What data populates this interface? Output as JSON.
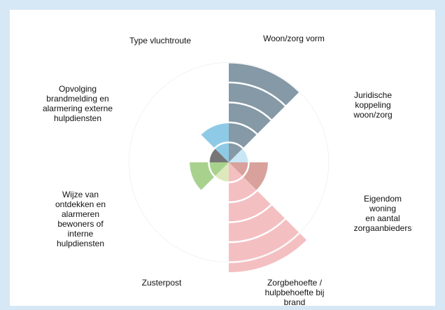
{
  "chart_data": {
    "type": "polarArea",
    "categories": [
      "Woon/zorg vorm",
      "Juridische\nkoppeling\nwoon/zorg",
      "Eigendom woning\nen aantal\nzorgaanbieders",
      "Zorgbehoefte /\nhulpbehoefte bij\nbrand",
      "Zusterpost",
      "Wijze van\nontdekken en\nalarmeren\nbewoners of\ninterne\nhulpdiensten",
      "Opvolging\nbrandmelding en\nalarmering externe\nhulpdiensten",
      "Type vluchtroute"
    ],
    "values": [
      5,
      1,
      2,
      5.5,
      1,
      2,
      1,
      2
    ],
    "colors": [
      "#8599a6",
      "#c9e6f5",
      "#d9a19c",
      "#f4bfc1",
      "#dde9bd",
      "#a9d18e",
      "#767676",
      "#8ecae6"
    ],
    "rlim": [
      0,
      5.5
    ],
    "rticks": [
      1,
      2,
      3,
      4,
      5
    ]
  }
}
